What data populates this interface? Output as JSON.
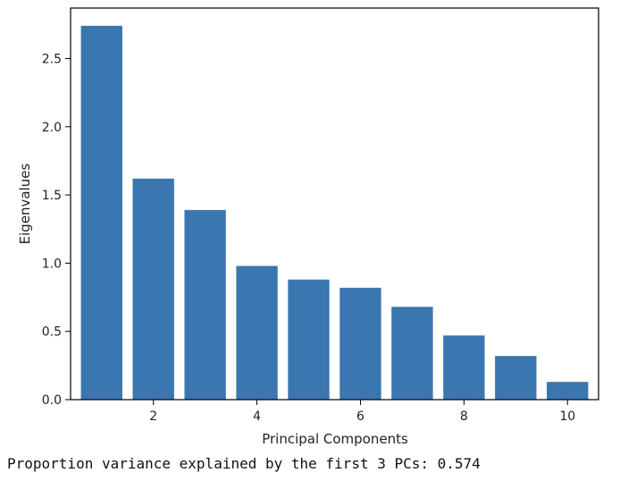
{
  "chart_data": {
    "type": "bar",
    "x": [
      1,
      2,
      3,
      4,
      5,
      6,
      7,
      8,
      9,
      10
    ],
    "values": [
      2.74,
      1.62,
      1.39,
      0.98,
      0.88,
      0.82,
      0.68,
      0.47,
      0.32,
      0.13
    ],
    "xlabel": "Principal Components",
    "ylabel": "Eigenvalues",
    "xlim": [
      0.4,
      10.6
    ],
    "ylim": [
      0.0,
      2.87
    ],
    "xticks": [
      2,
      4,
      6,
      8,
      10
    ],
    "xtick_labels": [
      "2",
      "4",
      "6",
      "8",
      "10"
    ],
    "yticks": [
      0.0,
      0.5,
      1.0,
      1.5,
      2.0,
      2.5
    ],
    "ytick_labels": [
      "0.0",
      "0.5",
      "1.0",
      "1.5",
      "2.0",
      "2.5"
    ],
    "bar_color": "#3a76af",
    "grid": false,
    "legend": false
  },
  "output": {
    "text": "Proportion variance explained by the first 3 PCs: 0.574"
  }
}
